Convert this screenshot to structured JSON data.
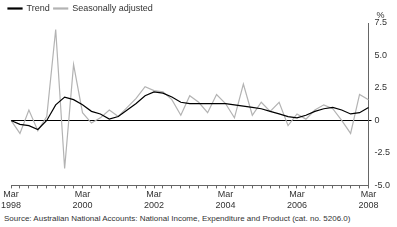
{
  "chart_data": {
    "type": "line",
    "y_label": "%",
    "annotations": [
      "Source: Australian National Accounts: National Income, Expenditure and Product (cat. no. 5206.0)"
    ],
    "categories": [
      "Mar 1998",
      null,
      null,
      null,
      null,
      null,
      null,
      null,
      "Mar 2000",
      null,
      null,
      null,
      null,
      null,
      null,
      null,
      "Mar 2002",
      null,
      null,
      null,
      null,
      null,
      null,
      null,
      "Mar 2004",
      null,
      null,
      null,
      null,
      null,
      null,
      null,
      "Mar 2006",
      null,
      null,
      null,
      null,
      null,
      null,
      null,
      "Mar 2008"
    ],
    "series": [
      {
        "name": "Trend",
        "color": "#000000",
        "values": [
          0,
          -0.3,
          -0.4,
          -0.7,
          0,
          1.2,
          1.8,
          1.6,
          1.2,
          0.7,
          0.5,
          0.1,
          0.3,
          0.8,
          1.3,
          1.9,
          2.2,
          2.1,
          1.8,
          1.4,
          1.3,
          1.3,
          1.3,
          1.3,
          1.3,
          1.2,
          1.1,
          1.0,
          0.9,
          0.7,
          0.5,
          0.3,
          0.2,
          0.4,
          0.7,
          0.9,
          1.0,
          0.8,
          0.5,
          0.6,
          1.0
        ]
      },
      {
        "name": "Seasonally adjusted",
        "color": "#b3b3b3",
        "values": [
          0,
          -1.0,
          0.8,
          -0.8,
          0.3,
          7.0,
          -3.7,
          4.3,
          0.6,
          -0.2,
          0.2,
          0.8,
          0.3,
          1.0,
          1.7,
          2.6,
          2.3,
          2.2,
          1.6,
          0.4,
          1.9,
          1.4,
          0.6,
          2.0,
          1.3,
          0.2,
          2.8,
          0.4,
          1.4,
          0.7,
          1.4,
          -0.4,
          0.5,
          0.1,
          0.8,
          1.2,
          0.9,
          0.0,
          -1.0,
          2.0,
          1.6
        ]
      }
    ],
    "ylim": [
      -5,
      7.5
    ],
    "yticks": [
      {
        "value": -5,
        "label": "-5.0"
      },
      -2.5,
      0,
      2.5,
      {
        "value": 5,
        "label": "5.0"
      },
      7.5
    ],
    "grid": false,
    "legend": "top-left"
  }
}
